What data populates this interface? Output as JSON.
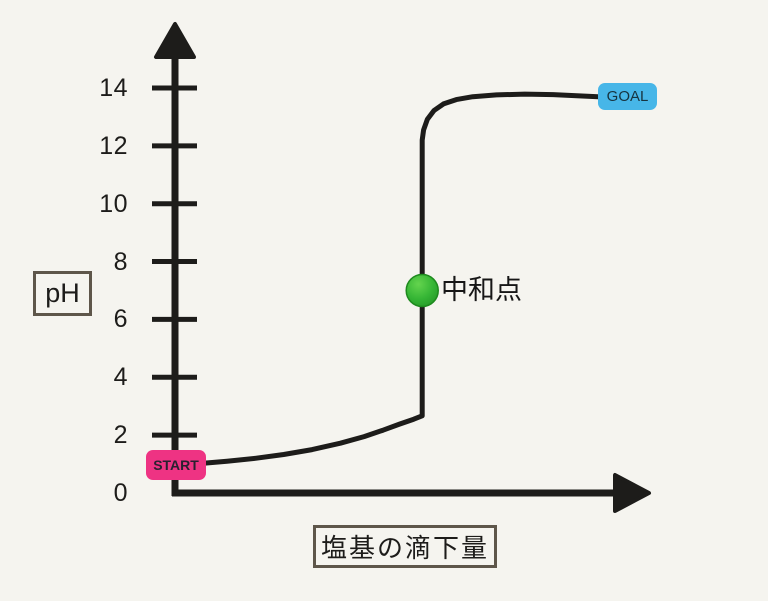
{
  "canvas": {
    "background_color": "#f5f4ef",
    "line_color": "#1d1c1a"
  },
  "chart_data": {
    "type": "line",
    "title": "",
    "xlabel": "塩基の滴下量",
    "ylabel": "pH",
    "ylim": [
      0,
      15.5
    ],
    "xlim": [
      0,
      100
    ],
    "y_ticks": [
      0,
      2,
      4,
      6,
      8,
      10,
      12,
      14
    ],
    "x_ticks": [],
    "grid": false,
    "legend": "none",
    "series": [
      {
        "name": "titration-curve",
        "color": "#1d1c1a",
        "points": [
          [
            6,
            1.03
          ],
          [
            11,
            1.1
          ],
          [
            17,
            1.2
          ],
          [
            23,
            1.33
          ],
          [
            29,
            1.5
          ],
          [
            35,
            1.72
          ],
          [
            40,
            1.95
          ],
          [
            44,
            2.17
          ],
          [
            47.5,
            2.38
          ],
          [
            50.5,
            2.55
          ],
          [
            52.3,
            2.67
          ],
          [
            52.3,
            7
          ],
          [
            52.3,
            12.2
          ],
          [
            52.6,
            12.55
          ],
          [
            53.4,
            12.92
          ],
          [
            54.8,
            13.22
          ],
          [
            56.8,
            13.45
          ],
          [
            59.5,
            13.6
          ],
          [
            63,
            13.7
          ],
          [
            68,
            13.76
          ],
          [
            74,
            13.79
          ],
          [
            80,
            13.77
          ],
          [
            85,
            13.73
          ],
          [
            89.5,
            13.7
          ]
        ]
      }
    ],
    "annotations": [
      {
        "name": "start",
        "label": "START",
        "x": 6,
        "ph": 1.0,
        "badge_color": "#ee3383",
        "text_color": "#2a2130"
      },
      {
        "name": "goal",
        "label": "GOAL",
        "x": 89.5,
        "ph": 13.7,
        "badge_color": "#47b6e8",
        "text_color": "#17333f"
      },
      {
        "name": "neutral",
        "label": "中和点",
        "x": 52.3,
        "ph": 7,
        "marker_color": "#2fae2e",
        "marker_highlight": "#64d44e",
        "marker_edge": "#1e8a1e"
      }
    ]
  }
}
